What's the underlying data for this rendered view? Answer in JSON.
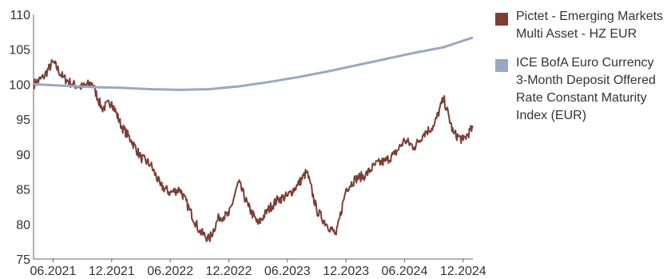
{
  "chart_data": {
    "type": "line",
    "title": "",
    "xlabel": "",
    "ylabel": "",
    "ylim": [
      75,
      110
    ],
    "yticks": [
      75,
      80,
      85,
      90,
      95,
      100,
      105,
      110
    ],
    "xlim": [
      "2021-04",
      "2025-01"
    ],
    "xticks": [
      "06.2021",
      "12.2021",
      "06.2022",
      "12.2022",
      "06.2023",
      "12.2023",
      "06.2024",
      "12.2024"
    ],
    "grid": false,
    "legend_position": "right",
    "series": [
      {
        "name": "Pictet - Emerging Markets Multi Asset - HZ EUR",
        "color": "#7b3f35",
        "x": [
          "2021-04",
          "2021-05",
          "2021-06",
          "2021-07",
          "2021-08",
          "2021-09",
          "2021-10",
          "2021-11",
          "2021-12",
          "2022-01",
          "2022-02",
          "2022-03",
          "2022-04",
          "2022-05",
          "2022-06",
          "2022-07",
          "2022-08",
          "2022-09",
          "2022-10",
          "2022-11",
          "2022-12",
          "2023-01",
          "2023-02",
          "2023-03",
          "2023-04",
          "2023-05",
          "2023-06",
          "2023-07",
          "2023-08",
          "2023-09",
          "2023-10",
          "2023-11",
          "2023-12",
          "2024-01",
          "2024-02",
          "2024-03",
          "2024-04",
          "2024-05",
          "2024-06",
          "2024-07",
          "2024-08",
          "2024-09",
          "2024-10",
          "2024-11",
          "2024-12",
          "2025-01"
        ],
        "values": [
          100.0,
          101.0,
          103.2,
          101.0,
          100.0,
          99.6,
          100.2,
          96.5,
          97.5,
          94.0,
          92.0,
          89.5,
          88.5,
          85.5,
          84.5,
          85.0,
          82.0,
          79.0,
          77.8,
          81.0,
          81.3,
          86.0,
          82.5,
          80.0,
          82.0,
          83.5,
          84.0,
          85.5,
          87.5,
          82.0,
          80.0,
          78.5,
          85.0,
          86.5,
          87.0,
          88.5,
          89.0,
          90.0,
          92.0,
          91.0,
          93.0,
          94.0,
          98.0,
          93.0,
          92.0,
          93.8
        ]
      },
      {
        "name": "ICE BofA Euro Currency 3-Month Deposit Offered Rate Constant Maturity Index (EUR)",
        "color": "#9aa8bf",
        "x": [
          "2021-04",
          "2021-07",
          "2021-10",
          "2022-01",
          "2022-04",
          "2022-07",
          "2022-10",
          "2023-01",
          "2023-04",
          "2023-07",
          "2023-10",
          "2024-01",
          "2024-04",
          "2024-07",
          "2024-10",
          "2025-01"
        ],
        "values": [
          100.0,
          99.8,
          99.6,
          99.5,
          99.3,
          99.2,
          99.3,
          99.7,
          100.3,
          101.0,
          101.8,
          102.7,
          103.6,
          104.5,
          105.3,
          106.7
        ]
      }
    ]
  }
}
